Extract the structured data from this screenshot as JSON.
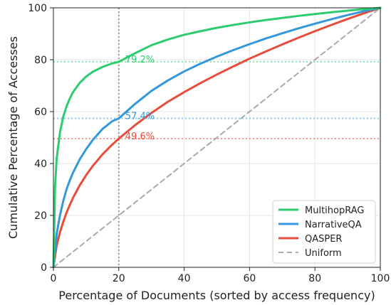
{
  "chart_data": {
    "type": "line",
    "title": "",
    "xlabel": "Percentage of Documents (sorted by access frequency)",
    "ylabel": "Cumulative Percentage of Accesses",
    "xlim": [
      0,
      100
    ],
    "ylim": [
      0,
      100
    ],
    "xticks": [
      "0",
      "20",
      "40",
      "60",
      "80",
      "100"
    ],
    "yticks": [
      "0",
      "20",
      "40",
      "60",
      "80",
      "100"
    ],
    "grid": true,
    "legend_position": "bottom-right",
    "series": [
      {
        "name": "MultihopRAG",
        "color": "#2ecc71",
        "x": [
          0,
          0.5,
          1,
          2,
          3,
          4,
          5,
          6,
          8,
          10,
          12,
          15,
          18,
          20,
          25,
          30,
          35,
          40,
          45,
          50,
          55,
          60,
          65,
          70,
          75,
          80,
          85,
          90,
          95,
          100
        ],
        "y": [
          0,
          31,
          42,
          52,
          58,
          62,
          65,
          67.5,
          71,
          73.5,
          75.3,
          77.2,
          78.6,
          79.2,
          82.5,
          85.6,
          87.8,
          89.6,
          91.0,
          92.3,
          93.4,
          94.4,
          95.3,
          96.1,
          96.9,
          97.6,
          98.3,
          98.9,
          99.5,
          100
        ]
      },
      {
        "name": "NarrativeQA",
        "color": "#3498db",
        "x": [
          0,
          1,
          2,
          3,
          4,
          5,
          6,
          8,
          10,
          12,
          15,
          18,
          20,
          25,
          30,
          35,
          40,
          45,
          50,
          55,
          60,
          65,
          70,
          75,
          80,
          85,
          90,
          95,
          100
        ],
        "y": [
          0,
          13,
          20,
          25.5,
          30,
          33.5,
          36.5,
          41.5,
          45.5,
          49,
          53.3,
          56.3,
          57.4,
          63,
          68,
          72,
          75.5,
          78.5,
          81.2,
          83.7,
          86,
          88.2,
          90.2,
          92.1,
          93.9,
          95.6,
          97.2,
          98.7,
          100
        ]
      },
      {
        "name": "QASPER",
        "color": "#e74c3c",
        "x": [
          0,
          1,
          2,
          3,
          4,
          5,
          6,
          8,
          10,
          12,
          15,
          18,
          20,
          25,
          30,
          35,
          40,
          45,
          50,
          55,
          60,
          65,
          70,
          75,
          80,
          85,
          90,
          95,
          100
        ],
        "y": [
          0,
          8.5,
          13.5,
          17.5,
          21,
          24,
          26.8,
          31.5,
          35.5,
          39,
          43.5,
          47.3,
          49.6,
          54.8,
          59.5,
          63.8,
          67.5,
          71,
          74.3,
          77.4,
          80.4,
          83.2,
          85.9,
          88.5,
          91,
          93.4,
          95.7,
          97.9,
          100
        ]
      },
      {
        "name": "Uniform",
        "color": "#aaaaaa",
        "dashed": true,
        "x": [
          0,
          100
        ],
        "y": [
          0,
          100
        ]
      }
    ],
    "reference_line": {
      "x": 20,
      "color": "#999999"
    },
    "annotations": [
      {
        "series": "MultihopRAG",
        "text": "79.2%",
        "y": 79.2
      },
      {
        "series": "NarrativeQA",
        "text": "57.4%",
        "y": 57.4
      },
      {
        "series": "QASPER",
        "text": "49.6%",
        "y": 49.6
      }
    ]
  }
}
